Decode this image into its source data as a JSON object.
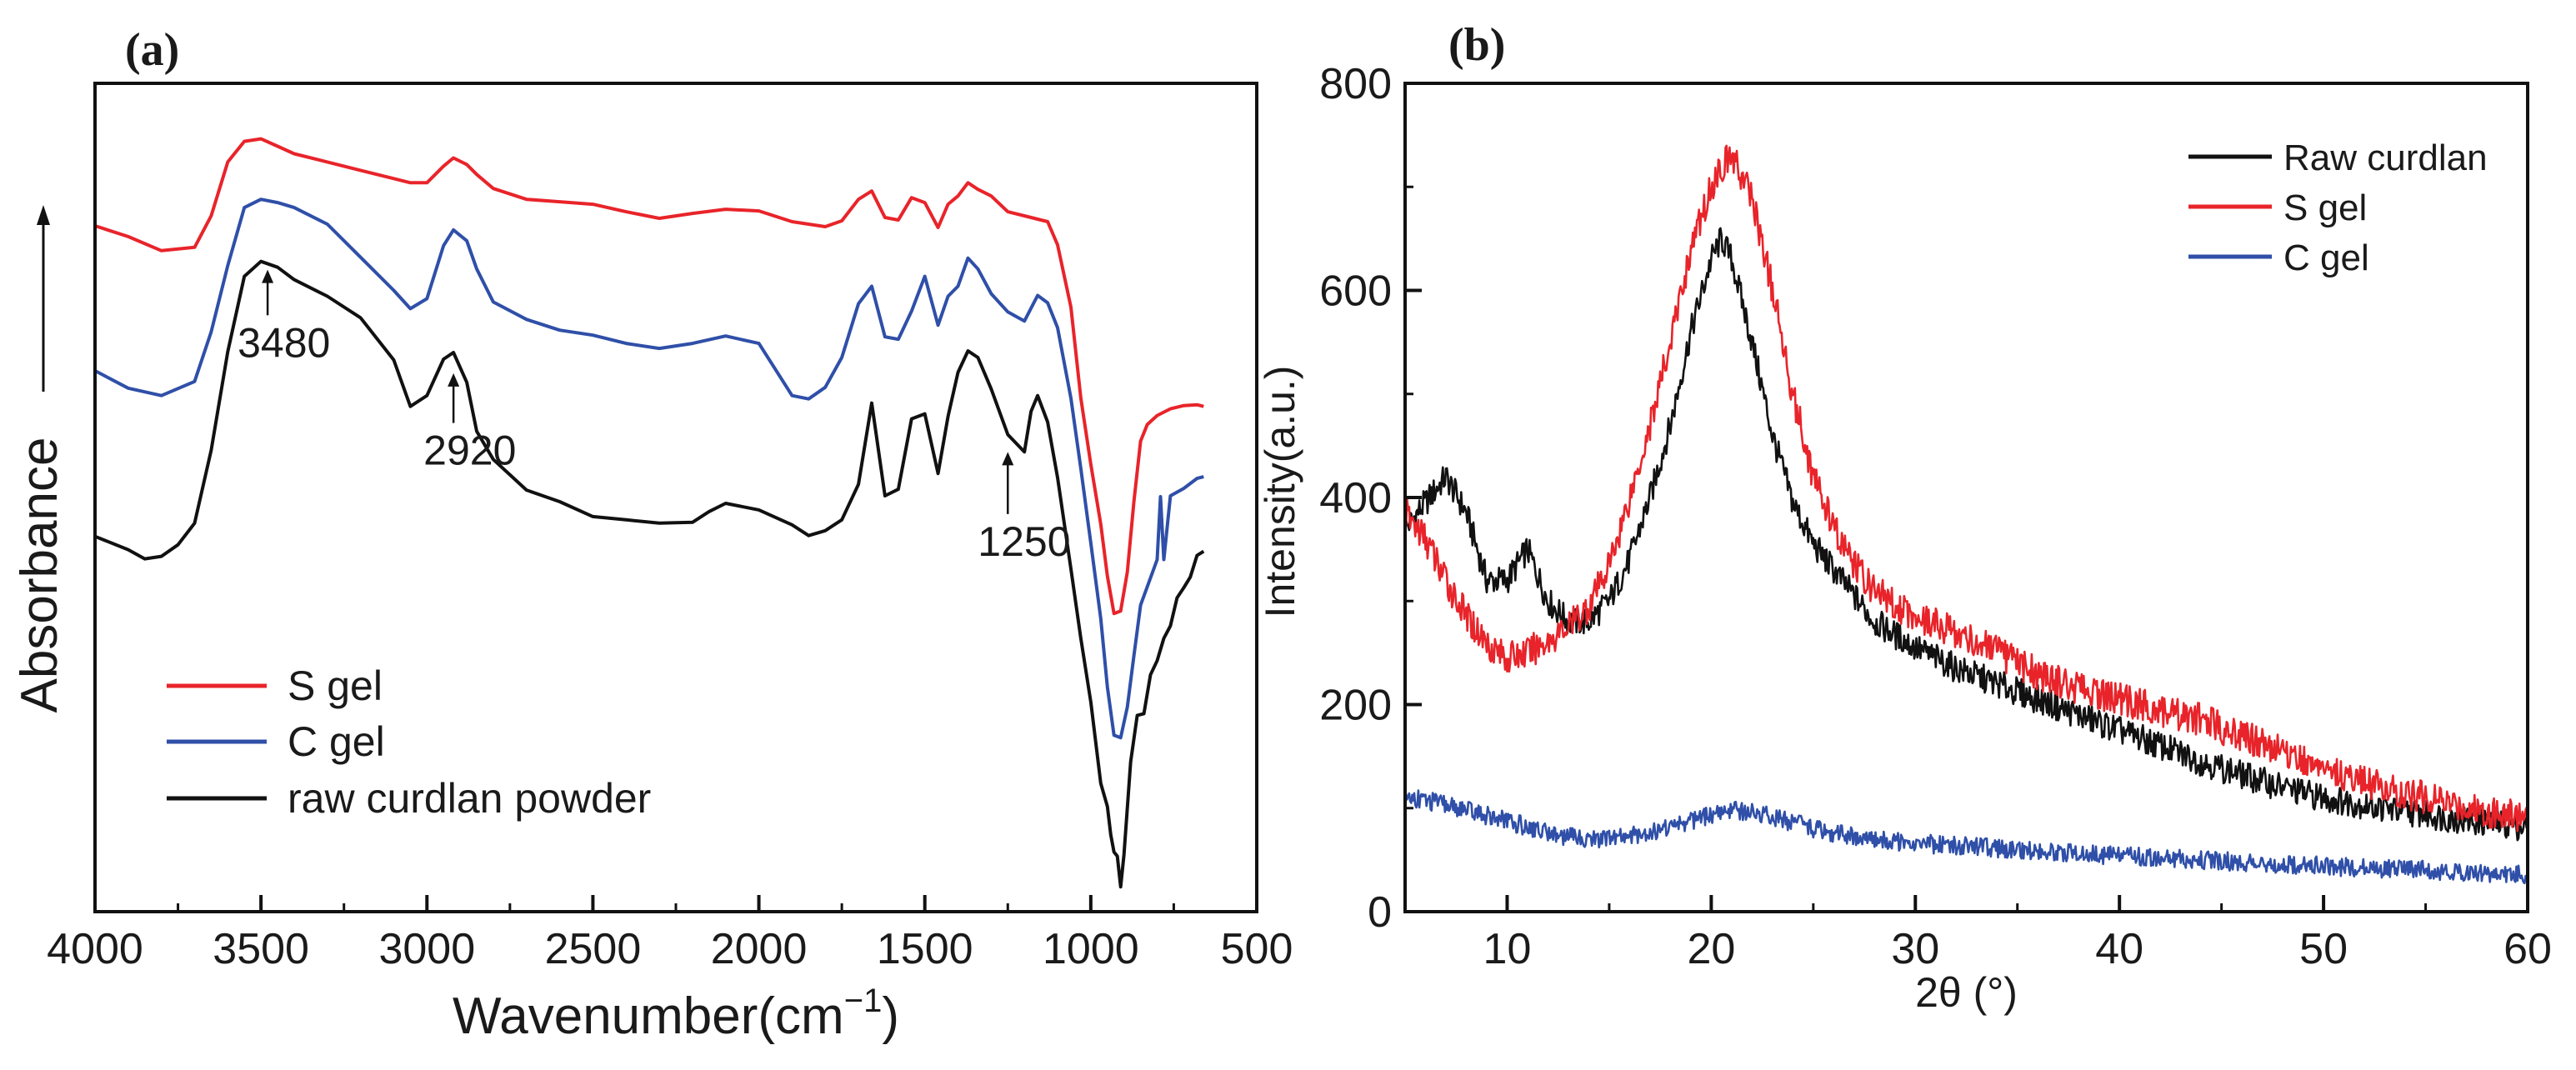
{
  "chart_data": [
    {
      "type": "line",
      "panel_label": "(a)",
      "title": "",
      "xlabel": "Wavenumber(cm",
      "xlabel_sup": "−1",
      "xlabel_end": ")",
      "ylabel": "Absorbance",
      "xlim": [
        4000,
        500
      ],
      "x_reversed": true,
      "ylim": [
        0,
        100
      ],
      "y_ticks_shown": false,
      "grid": false,
      "x_ticks": [
        4000,
        3500,
        3000,
        2500,
        2000,
        1500,
        1000,
        500
      ],
      "x_tick_labels": [
        "4000",
        "3500",
        "3000",
        "2500",
        "2000",
        "1500",
        "1000",
        "500"
      ],
      "legend_location": "lower-left",
      "series": [
        {
          "name": "S gel",
          "color": "#e8242a",
          "x": [
            4000,
            3900,
            3800,
            3700,
            3650,
            3600,
            3550,
            3500,
            3450,
            3400,
            3300,
            3200,
            3100,
            3050,
            3000,
            2950,
            2920,
            2880,
            2850,
            2800,
            2700,
            2600,
            2500,
            2400,
            2300,
            2200,
            2100,
            2000,
            1900,
            1800,
            1750,
            1700,
            1660,
            1620,
            1580,
            1540,
            1500,
            1460,
            1430,
            1400,
            1370,
            1340,
            1300,
            1250,
            1200,
            1160,
            1130,
            1100,
            1060,
            1030,
            1000,
            970,
            950,
            930,
            910,
            890,
            870,
            850,
            830,
            800,
            760,
            720,
            680,
            660
          ],
          "y": [
            82.8,
            81.5,
            79.8,
            80.2,
            84.0,
            90.5,
            93.0,
            93.3,
            92.4,
            91.5,
            90.5,
            89.5,
            88.5,
            88.0,
            88.0,
            90.0,
            91.0,
            90.2,
            89.0,
            87.3,
            86.0,
            85.7,
            85.4,
            84.5,
            83.7,
            84.3,
            84.8,
            84.6,
            83.3,
            82.7,
            83.4,
            86.0,
            87.0,
            83.8,
            83.5,
            86.2,
            85.6,
            82.6,
            85.4,
            86.4,
            88.0,
            87.2,
            86.4,
            84.5,
            84.0,
            83.6,
            83.3,
            80.5,
            73.0,
            62.0,
            54.0,
            46.8,
            40.5,
            36.0,
            36.3,
            41.0,
            49.5,
            56.8,
            58.8,
            59.9,
            60.7,
            61.1,
            61.2,
            61.0
          ]
        },
        {
          "name": "C gel",
          "color": "#2f4fa8",
          "x": [
            4000,
            3900,
            3800,
            3700,
            3650,
            3600,
            3550,
            3500,
            3450,
            3400,
            3300,
            3200,
            3100,
            3050,
            3000,
            2950,
            2920,
            2880,
            2850,
            2800,
            2700,
            2600,
            2500,
            2400,
            2300,
            2200,
            2100,
            2000,
            1900,
            1850,
            1800,
            1750,
            1700,
            1660,
            1620,
            1580,
            1540,
            1500,
            1460,
            1430,
            1400,
            1370,
            1340,
            1300,
            1250,
            1200,
            1160,
            1130,
            1100,
            1060,
            1030,
            1000,
            970,
            950,
            930,
            910,
            890,
            870,
            850,
            800,
            790,
            780,
            760,
            720,
            680,
            660
          ],
          "y": [
            65.3,
            63.2,
            62.3,
            64.0,
            70.0,
            78.0,
            85.0,
            86.0,
            85.6,
            85.0,
            83.0,
            79.0,
            75.0,
            72.8,
            74.0,
            80.4,
            82.3,
            81.0,
            77.6,
            73.6,
            71.5,
            70.2,
            69.6,
            68.6,
            68.0,
            68.6,
            69.5,
            68.6,
            62.3,
            61.9,
            63.3,
            66.9,
            73.4,
            75.5,
            69.4,
            69.1,
            72.5,
            76.7,
            70.8,
            74.3,
            75.5,
            78.9,
            77.6,
            74.6,
            72.4,
            71.3,
            74.4,
            73.5,
            70.5,
            62.0,
            53.5,
            44.5,
            35.4,
            27.1,
            21.3,
            21.0,
            24.7,
            30.9,
            37.0,
            42.5,
            50.1,
            42.5,
            50.2,
            51.1,
            52.3,
            52.5
          ]
        },
        {
          "name": "raw curdlan powder",
          "color": "#111111",
          "x": [
            4000,
            3900,
            3850,
            3800,
            3750,
            3700,
            3650,
            3600,
            3550,
            3500,
            3450,
            3400,
            3300,
            3200,
            3100,
            3050,
            3000,
            2950,
            2920,
            2880,
            2850,
            2800,
            2700,
            2600,
            2500,
            2400,
            2300,
            2200,
            2150,
            2100,
            2000,
            1900,
            1850,
            1800,
            1750,
            1700,
            1660,
            1620,
            1580,
            1540,
            1500,
            1460,
            1430,
            1400,
            1370,
            1340,
            1300,
            1250,
            1200,
            1180,
            1160,
            1130,
            1100,
            1060,
            1030,
            1000,
            970,
            950,
            940,
            930,
            920,
            910,
            900,
            880,
            860,
            840,
            820,
            800,
            780,
            760,
            740,
            720,
            700,
            680,
            660
          ],
          "y": [
            45.3,
            43.7,
            42.6,
            42.9,
            44.3,
            46.9,
            55.7,
            67.6,
            76.7,
            78.5,
            77.8,
            76.3,
            74.3,
            71.7,
            66.6,
            61.0,
            62.3,
            66.7,
            67.5,
            63.9,
            58.0,
            54.6,
            50.9,
            49.5,
            47.7,
            47.3,
            46.9,
            47.0,
            48.3,
            49.3,
            48.5,
            46.7,
            45.4,
            46.0,
            47.3,
            51.6,
            61.4,
            50.2,
            51.0,
            59.5,
            60.1,
            52.9,
            59.8,
            65.1,
            67.7,
            66.9,
            63.1,
            57.6,
            55.5,
            60.4,
            62.3,
            59.1,
            52.4,
            41.4,
            33.0,
            25.3,
            15.5,
            12.7,
            9.3,
            7.2,
            6.7,
            3.0,
            6.9,
            18.1,
            23.7,
            23.9,
            28.6,
            30.3,
            33.0,
            34.5,
            37.9,
            39.1,
            40.4,
            43.0,
            43.5
          ]
        }
      ],
      "annotations": [
        {
          "text": "3480",
          "x": 3480,
          "y_from": 72.0,
          "y_to": 77.5
        },
        {
          "text": "2920",
          "x": 2920,
          "y_from": 59.0,
          "y_to": 65.0
        },
        {
          "text": "1250",
          "x": 1250,
          "y_from": 48.0,
          "y_to": 55.5
        }
      ]
    },
    {
      "type": "line",
      "panel_label": "(b)",
      "title": "",
      "xlabel": "2θ (°)",
      "ylabel": "Intensity(a.u.)",
      "xlim": [
        5,
        60
      ],
      "ylim": [
        0,
        800
      ],
      "grid": false,
      "x_ticks": [
        10,
        20,
        30,
        40,
        50,
        60
      ],
      "x_tick_labels": [
        "10",
        "20",
        "30",
        "40",
        "50",
        "60"
      ],
      "y_ticks": [
        0,
        200,
        400,
        600,
        800
      ],
      "y_tick_labels": [
        "0",
        "200",
        "400",
        "600",
        "800"
      ],
      "legend_location": "top-right",
      "series": [
        {
          "name": "Raw curdlan",
          "color": "#111111",
          "x": [
            5,
            6,
            7,
            8,
            9,
            10,
            11,
            12,
            13,
            14,
            15,
            16,
            17,
            18,
            19,
            20,
            20.5,
            21,
            22,
            23,
            24,
            25,
            26,
            27,
            28,
            30,
            32,
            34,
            36,
            38,
            40,
            42,
            44,
            46,
            48,
            50,
            52,
            54,
            56,
            58,
            60
          ],
          "y": [
            370,
            395,
            420,
            385,
            320,
            320,
            350,
            300,
            280,
            280,
            300,
            340,
            400,
            470,
            560,
            630,
            650,
            630,
            550,
            460,
            395,
            355,
            330,
            305,
            280,
            255,
            235,
            220,
            205,
            190,
            175,
            160,
            145,
            132,
            120,
            110,
            103,
            97,
            91,
            86,
            82
          ]
        },
        {
          "name": "S gel",
          "color": "#e8242a",
          "x": [
            5,
            6,
            7,
            8,
            9,
            10,
            11,
            12,
            13,
            14,
            15,
            16,
            17,
            18,
            19,
            20,
            20.5,
            21,
            22,
            23,
            24,
            25,
            26,
            27,
            28,
            30,
            32,
            34,
            36,
            38,
            40,
            42,
            44,
            46,
            48,
            50,
            52,
            54,
            56,
            58,
            60
          ],
          "y": [
            385,
            360,
            320,
            285,
            260,
            245,
            250,
            262,
            275,
            295,
            335,
            400,
            470,
            550,
            640,
            700,
            720,
            730,
            690,
            600,
            500,
            420,
            370,
            335,
            310,
            285,
            270,
            250,
            230,
            215,
            205,
            195,
            185,
            170,
            155,
            138,
            125,
            115,
            105,
            97,
            92
          ]
        },
        {
          "name": "C gel",
          "color": "#2f4fa8",
          "x": [
            5,
            7,
            9,
            11,
            13,
            15,
            17,
            19,
            21,
            23,
            25,
            27,
            30,
            35,
            40,
            45,
            50,
            55,
            60
          ],
          "y": [
            112,
            103,
            93,
            82,
            72,
            70,
            77,
            88,
            99,
            92,
            80,
            72,
            66,
            60,
            54,
            49,
            44,
            40,
            35
          ]
        }
      ]
    }
  ]
}
